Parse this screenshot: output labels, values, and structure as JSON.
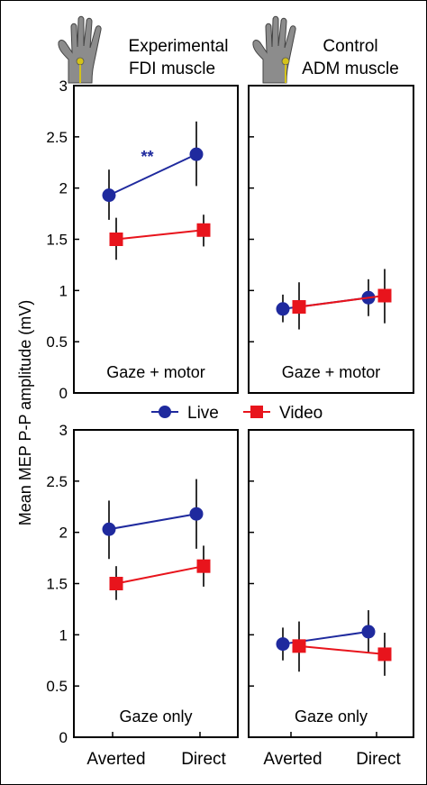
{
  "figure": {
    "ylabel": "Mean MEP P-P amplitude (mV)",
    "yticks": [
      "0",
      "0.5",
      "1",
      "1.5",
      "2",
      "2.5",
      "3"
    ],
    "xticks": [
      "Averted",
      "Direct"
    ],
    "headers": [
      {
        "line1": "Experimental",
        "line2": "FDI muscle"
      },
      {
        "line1": "Control",
        "line2": "ADM muscle"
      }
    ],
    "legend": [
      {
        "name": "Live",
        "color": "#1f2a9e",
        "marker": "circle"
      },
      {
        "name": "Video",
        "color": "#e8141c",
        "marker": "square"
      }
    ],
    "icons": [
      "hand-fdi-icon",
      "hand-adm-icon"
    ]
  },
  "chart_data": [
    {
      "type": "line",
      "panel": "top-left",
      "label": "Gaze + motor",
      "categories": [
        "Averted",
        "Direct"
      ],
      "ylim": [
        0,
        3
      ],
      "annotation": "**",
      "series": [
        {
          "name": "Live",
          "values": [
            1.93,
            2.33
          ],
          "err_low": [
            1.69,
            2.02
          ],
          "err_high": [
            2.18,
            2.65
          ]
        },
        {
          "name": "Video",
          "values": [
            1.5,
            1.59
          ],
          "err_low": [
            1.3,
            1.43
          ],
          "err_high": [
            1.71,
            1.74
          ]
        }
      ]
    },
    {
      "type": "line",
      "panel": "top-right",
      "label": "Gaze + motor",
      "categories": [
        "Averted",
        "Direct"
      ],
      "ylim": [
        0,
        3
      ],
      "series": [
        {
          "name": "Live",
          "values": [
            0.82,
            0.93
          ],
          "err_low": [
            0.69,
            0.75
          ],
          "err_high": [
            0.96,
            1.11
          ]
        },
        {
          "name": "Video",
          "values": [
            0.84,
            0.95
          ],
          "err_low": [
            0.62,
            0.68
          ],
          "err_high": [
            1.08,
            1.21
          ]
        }
      ]
    },
    {
      "type": "line",
      "panel": "bottom-left",
      "label": "Gaze only",
      "categories": [
        "Averted",
        "Direct"
      ],
      "ylim": [
        0,
        3
      ],
      "series": [
        {
          "name": "Live",
          "values": [
            2.03,
            2.18
          ],
          "err_low": [
            1.74,
            1.84
          ],
          "err_high": [
            2.31,
            2.52
          ]
        },
        {
          "name": "Video",
          "values": [
            1.5,
            1.67
          ],
          "err_low": [
            1.34,
            1.47
          ],
          "err_high": [
            1.67,
            1.87
          ]
        }
      ]
    },
    {
      "type": "line",
      "panel": "bottom-right",
      "label": "Gaze only",
      "categories": [
        "Averted",
        "Direct"
      ],
      "ylim": [
        0,
        3
      ],
      "series": [
        {
          "name": "Live",
          "values": [
            0.91,
            1.03
          ],
          "err_low": [
            0.75,
            0.82
          ],
          "err_high": [
            1.07,
            1.24
          ]
        },
        {
          "name": "Video",
          "values": [
            0.89,
            0.81
          ],
          "err_low": [
            0.64,
            0.6
          ],
          "err_high": [
            1.13,
            1.02
          ]
        }
      ]
    }
  ]
}
